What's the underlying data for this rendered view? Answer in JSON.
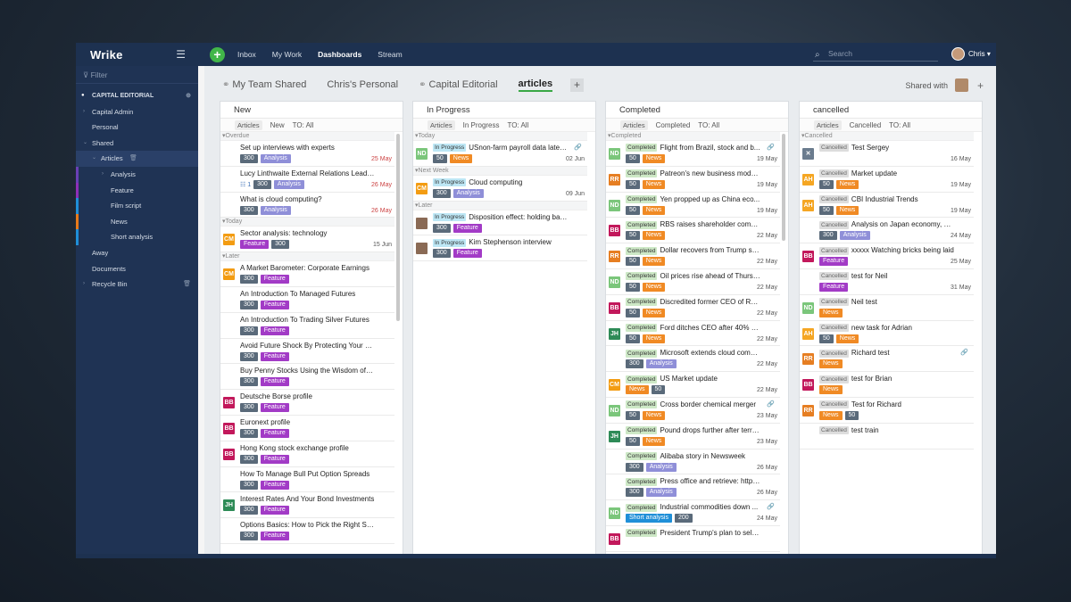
{
  "app": {
    "name": "Wrike"
  },
  "topnav": {
    "items": [
      "Inbox",
      "My Work",
      "Dashboards",
      "Stream"
    ],
    "active": "Dashboards",
    "search_placeholder": "Search",
    "user": "Chris"
  },
  "sidebar": {
    "filter": "Filter",
    "items": [
      {
        "label": "CAPITAL EDITORIAL",
        "type": "hdr",
        "indent": 0
      },
      {
        "label": "Capital Admin",
        "indent": 1,
        "chev": true
      },
      {
        "label": "Personal",
        "indent": 1
      },
      {
        "label": "Shared",
        "indent": 1,
        "chev": true,
        "open": true
      },
      {
        "label": "Articles",
        "indent": 2,
        "chev": true,
        "open": true,
        "sel": true
      },
      {
        "label": "Analysis",
        "indent": 3,
        "chev": true,
        "bar": "#6a3fb5"
      },
      {
        "label": "Feature",
        "indent": 3,
        "bar": "#8e2fb8"
      },
      {
        "label": "Film script",
        "indent": 3,
        "bar": "#1f8fd8"
      },
      {
        "label": "News",
        "indent": 3,
        "bar": "#e87a1a"
      },
      {
        "label": "Short analysis",
        "indent": 3,
        "bar": "#1f8fd8"
      },
      {
        "label": "Away",
        "indent": 1
      },
      {
        "label": "Documents",
        "indent": 1
      },
      {
        "label": "Recycle Bin",
        "indent": 1,
        "chev": true,
        "trash": true
      }
    ]
  },
  "tabs": [
    {
      "label": "My Team Shared",
      "icon": "share"
    },
    {
      "label": "Chris's Personal"
    },
    {
      "label": "Capital Editorial",
      "icon": "share"
    },
    {
      "label": "articles",
      "active": true
    }
  ],
  "shared_with": "Shared with",
  "colors": {
    "Analysis": "#8f8fd8",
    "Feature": "#a23bc6",
    "News": "#f08a24",
    "Short analysis": "#1f8fd8",
    "300": "#5a6a7a",
    "50": "#5a6a7a",
    "200": "#5a6a7a",
    "BB": "#c2185b",
    "CM": "#f39c12",
    "ND": "#7bc67b",
    "RR": "#e67e22",
    "JH": "#2e8b57",
    "AH": "#f5a623",
    "Completed": "#cde8c6",
    "In Progress": "#bde7f5",
    "Cancelled": "#dddddd"
  },
  "columns": [
    {
      "title": "New",
      "sub": [
        "Articles",
        "New",
        "TO: All"
      ],
      "groups": [
        {
          "name": "Overdue",
          "cards": [
            {
              "title": "Set up interviews with experts",
              "tags": [
                "300",
                "Analysis"
              ],
              "date": "25 May",
              "red": true
            },
            {
              "title": "Lucy Linthwaite External Relations Leader IB...",
              "tags": [
                "300",
                "Analysis"
              ],
              "date": "26 May",
              "red": true,
              "sub": "1"
            },
            {
              "title": "What is cloud computing?",
              "tags": [
                "300",
                "Analysis"
              ],
              "date": "26 May",
              "red": true
            }
          ]
        },
        {
          "name": "Today",
          "cards": [
            {
              "title": "Sector analysis: technology",
              "tags": [
                "Feature",
                "300"
              ],
              "date": "15 Jun",
              "ini": "CM"
            }
          ]
        },
        {
          "name": "Later",
          "cards": [
            {
              "title": "A Market Barometer: Corporate Earnings",
              "tags": [
                "300",
                "Feature"
              ],
              "ini": "CM"
            },
            {
              "title": "An Introduction To Managed Futures",
              "tags": [
                "300",
                "Feature"
              ]
            },
            {
              "title": "An Introduction To Trading Silver Futures",
              "tags": [
                "300",
                "Feature"
              ]
            },
            {
              "title": "Avoid Future Shock By Protecting Your Portf...",
              "tags": [
                "300",
                "Feature"
              ]
            },
            {
              "title": "Buy Penny Stocks Using the Wisdom of Peter...",
              "tags": [
                "300",
                "Feature"
              ]
            },
            {
              "title": "Deutsche Borse profile",
              "tags": [
                "300",
                "Feature"
              ],
              "ini": "BB"
            },
            {
              "title": "Euronext profile",
              "tags": [
                "300",
                "Feature"
              ],
              "ini": "BB"
            },
            {
              "title": "Hong Kong stock exchange profile",
              "tags": [
                "300",
                "Feature"
              ],
              "ini": "BB"
            },
            {
              "title": "How To Manage Bull Put Option Spreads",
              "tags": [
                "300",
                "Feature"
              ]
            },
            {
              "title": "Interest Rates And Your Bond Investments",
              "tags": [
                "300",
                "Feature"
              ],
              "ini": "JH"
            },
            {
              "title": "Options Basics: How to Pick the Right Strike ...",
              "tags": [
                "300",
                "Feature"
              ]
            }
          ]
        }
      ]
    },
    {
      "title": "In Progress",
      "sub": [
        "Articles",
        "In Progress",
        "TO: All"
      ],
      "groups": [
        {
          "name": "Today",
          "cards": [
            {
              "st": "In Progress",
              "title": "USnon-farm payroll data later to...",
              "tags": [
                "50",
                "News"
              ],
              "date": "02 Jun",
              "ini": "ND",
              "clip": true
            }
          ]
        },
        {
          "name": "Next Week",
          "cards": [
            {
              "st": "In Progress",
              "title": "Cloud computing",
              "tags": [
                "300",
                "Analysis"
              ],
              "date": "09 Jun",
              "ini": "CM"
            }
          ]
        },
        {
          "name": "Later",
          "cards": [
            {
              "st": "In Progress",
              "title": "Disposition effect: holding bad stock...",
              "tags": [
                "300",
                "Feature"
              ],
              "photo": true
            },
            {
              "st": "In Progress",
              "title": "Kim Stephenson interview",
              "tags": [
                "300",
                "Feature"
              ],
              "photo": true
            }
          ]
        }
      ]
    },
    {
      "title": "Completed",
      "sub": [
        "Articles",
        "Completed",
        "TO: All"
      ],
      "groups": [
        {
          "name": "Completed",
          "cards": [
            {
              "st": "Completed",
              "title": "Flight from Brazil, stock and b...",
              "tags": [
                "50",
                "News"
              ],
              "date": "19 May",
              "ini": "ND",
              "clip": true
            },
            {
              "st": "Completed",
              "title": "Patreon's new business model for...",
              "tags": [
                "50",
                "News"
              ],
              "date": "19 May",
              "ini": "RR"
            },
            {
              "st": "Completed",
              "title": "Yen propped up as China eco...",
              "tags": [
                "50",
                "News"
              ],
              "date": "19 May",
              "ini": "ND"
            },
            {
              "st": "Completed",
              "title": "RBS raises shareholder compensa...",
              "tags": [
                "50",
                "News"
              ],
              "date": "22 May",
              "ini": "BB"
            },
            {
              "st": "Completed",
              "title": "Dollar recovers from Trump slum...",
              "tags": [
                "50",
                "News"
              ],
              "date": "22 May",
              "ini": "RR"
            },
            {
              "st": "Completed",
              "title": "Oil prices rise ahead of Thursd...",
              "tags": [
                "50",
                "News"
              ],
              "date": "22 May",
              "ini": "ND"
            },
            {
              "st": "Completed",
              "title": "Discredited former CEO of RBS to ...",
              "tags": [
                "50",
                "News"
              ],
              "date": "22 May",
              "ini": "BB"
            },
            {
              "st": "Completed",
              "title": "Ford ditches CEO after 40% share ...",
              "tags": [
                "50",
                "News"
              ],
              "date": "22 May",
              "ini": "JH"
            },
            {
              "st": "Completed",
              "title": "Microsoft extends cloud computi...",
              "tags": [
                "300",
                "Analysis"
              ],
              "date": "22 May"
            },
            {
              "st": "Completed",
              "title": "US Market update",
              "tags": [
                "News",
                "50"
              ],
              "date": "22 May",
              "ini": "CM"
            },
            {
              "st": "Completed",
              "title": "Cross border chemical merger",
              "tags": [
                "50",
                "News"
              ],
              "date": "23 May",
              "ini": "ND",
              "clip": true
            },
            {
              "st": "Completed",
              "title": "Pound drops further after terroris...",
              "tags": [
                "50",
                "News"
              ],
              "date": "23 May",
              "ini": "JH"
            },
            {
              "st": "Completed",
              "title": "Alibaba story in Newsweek",
              "tags": [
                "300",
                "Analysis"
              ],
              "date": "26 May"
            },
            {
              "st": "Completed",
              "title": "Press office and retrieve: https://...",
              "tags": [
                "300",
                "Analysis"
              ],
              "date": "26 May"
            },
            {
              "st": "Completed",
              "title": "Industrial commodities down ...",
              "tags": [
                "Short analysis",
                "200"
              ],
              "date": "24 May",
              "ini": "ND",
              "clip": true
            },
            {
              "st": "Completed",
              "title": "President Trump's plan to sell oil ...",
              "tags": [],
              "ini": "BB"
            }
          ]
        }
      ]
    },
    {
      "title": "cancelled",
      "sub": [
        "Articles",
        "Cancelled",
        "TO: All"
      ],
      "groups": [
        {
          "name": "Cancelled",
          "cards": [
            {
              "st": "Cancelled",
              "title": "Test Sergey",
              "tags": [],
              "date": "16 May",
              "ini": "X"
            },
            {
              "st": "Cancelled",
              "title": "Market update",
              "tags": [
                "50",
                "News"
              ],
              "date": "19 May",
              "ini": "AH"
            },
            {
              "st": "Cancelled",
              "title": "CBI Industrial Trends",
              "tags": [
                "50",
                "News"
              ],
              "date": "19 May",
              "ini": "AH"
            },
            {
              "st": "Cancelled",
              "title": "Analysis on Japan economy, hanging ...",
              "tags": [
                "300",
                "Analysis"
              ],
              "date": "24 May"
            },
            {
              "st": "Cancelled",
              "title": "xxxxx Watching bricks being laid",
              "tags": [
                "Feature"
              ],
              "date": "25 May",
              "ini": "BB"
            },
            {
              "st": "Cancelled",
              "title": "test for Neil",
              "tags": [
                "Feature"
              ],
              "date": "31 May"
            },
            {
              "st": "Cancelled",
              "title": "Neil test",
              "tags": [
                "News"
              ],
              "ini": "ND"
            },
            {
              "st": "Cancelled",
              "title": "new task for Adrian",
              "tags": [
                "50",
                "News"
              ],
              "ini": "AH"
            },
            {
              "st": "Cancelled",
              "title": "Richard test",
              "tags": [
                "News"
              ],
              "ini": "RR",
              "clip": true
            },
            {
              "st": "Cancelled",
              "title": "test for Brian",
              "tags": [
                "News"
              ],
              "ini": "BB"
            },
            {
              "st": "Cancelled",
              "title": "Test for Richard",
              "tags": [
                "News",
                "50"
              ],
              "ini": "RR"
            },
            {
              "st": "Cancelled",
              "title": "test train",
              "tags": []
            }
          ]
        }
      ]
    }
  ]
}
